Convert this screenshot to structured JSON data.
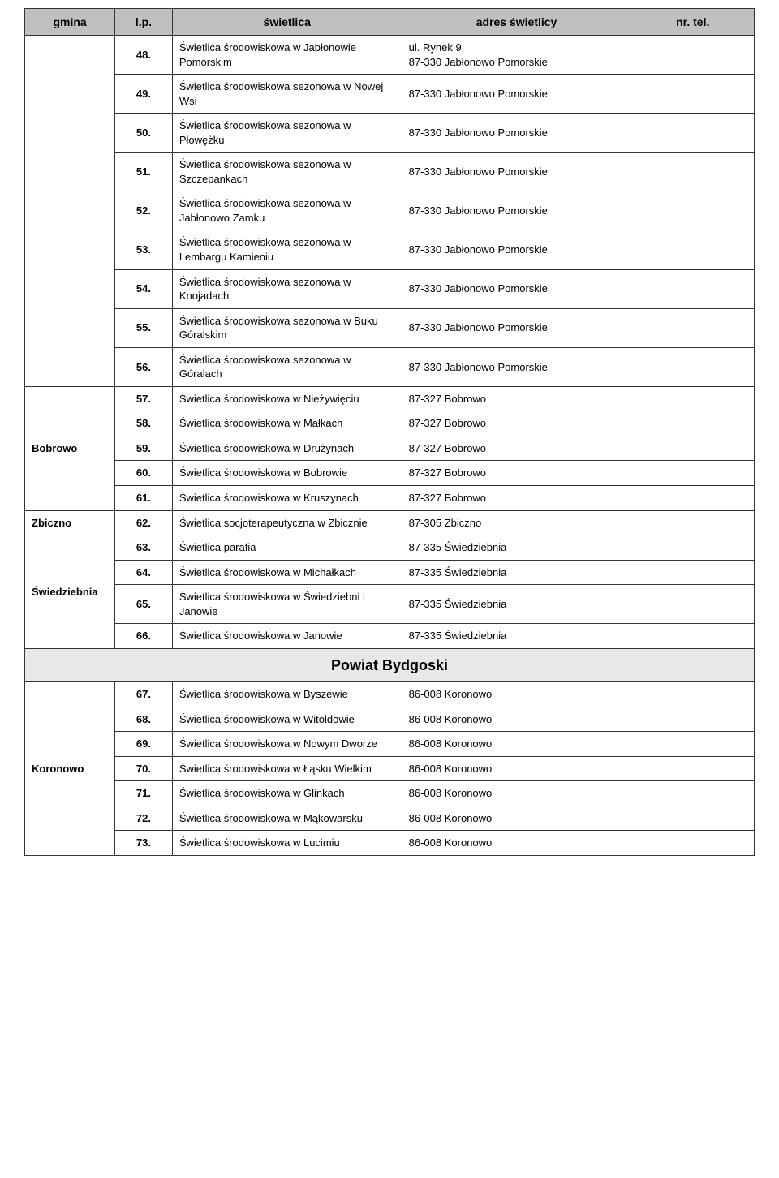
{
  "headers": {
    "gmina": "gmina",
    "lp": "l.p.",
    "swietlica": "świetlica",
    "adres": "adres świetlicy",
    "tel": "nr. tel."
  },
  "section_header": "Powiat Bydgoski",
  "groups": [
    {
      "gmina": "",
      "rows": [
        {
          "lp": "48.",
          "sw": "Świetlica środowiskowa w Jabłonowie Pomorskim",
          "adr": "ul. Rynek 9\n87-330 Jabłonowo Pomorskie",
          "tel": ""
        },
        {
          "lp": "49.",
          "sw": "Świetlica środowiskowa sezonowa w Nowej Wsi",
          "adr": "87-330 Jabłonowo Pomorskie",
          "tel": ""
        },
        {
          "lp": "50.",
          "sw": "Świetlica środowiskowa sezonowa w Płowężku",
          "adr": "87-330 Jabłonowo Pomorskie",
          "tel": ""
        },
        {
          "lp": "51.",
          "sw": "Świetlica środowiskowa sezonowa w Szczepankach",
          "adr": "87-330 Jabłonowo Pomorskie",
          "tel": ""
        },
        {
          "lp": "52.",
          "sw": "Świetlica środowiskowa sezonowa w Jabłonowo Zamku",
          "adr": "87-330 Jabłonowo Pomorskie",
          "tel": ""
        },
        {
          "lp": "53.",
          "sw": "Świetlica środowiskowa sezonowa w Lembargu Kamieniu",
          "adr": "87-330 Jabłonowo Pomorskie",
          "tel": ""
        },
        {
          "lp": "54.",
          "sw": "Świetlica środowiskowa sezonowa w Knojadach",
          "adr": "87-330 Jabłonowo Pomorskie",
          "tel": ""
        },
        {
          "lp": "55.",
          "sw": "Świetlica środowiskowa sezonowa w Buku Góralskim",
          "adr": "87-330 Jabłonowo Pomorskie",
          "tel": ""
        },
        {
          "lp": "56.",
          "sw": "Świetlica środowiskowa sezonowa w Góralach",
          "adr": "87-330 Jabłonowo Pomorskie",
          "tel": ""
        }
      ]
    },
    {
      "gmina": "Bobrowo",
      "rows": [
        {
          "lp": "57.",
          "sw": "Świetlica środowiskowa w Nieżywięciu",
          "adr": "87-327 Bobrowo",
          "tel": ""
        },
        {
          "lp": "58.",
          "sw": "Świetlica środowiskowa w Małkach",
          "adr": "87-327 Bobrowo",
          "tel": ""
        },
        {
          "lp": "59.",
          "sw": "Świetlica środowiskowa w Drużynach",
          "adr": "87-327 Bobrowo",
          "tel": ""
        },
        {
          "lp": "60.",
          "sw": "Świetlica środowiskowa w Bobrowie",
          "adr": "87-327 Bobrowo",
          "tel": ""
        },
        {
          "lp": "61.",
          "sw": "Świetlica środowiskowa w Kruszynach",
          "adr": "87-327 Bobrowo",
          "tel": ""
        }
      ]
    },
    {
      "gmina": "Zbiczno",
      "rows": [
        {
          "lp": "62.",
          "sw": "Świetlica socjoterapeutyczna w Zbicznie",
          "adr": "87-305 Zbiczno",
          "tel": ""
        }
      ]
    },
    {
      "gmina": "Świedziebnia",
      "rows": [
        {
          "lp": "63.",
          "sw": "Świetlica parafia",
          "adr": "87-335 Świedziebnia",
          "tel": ""
        },
        {
          "lp": "64.",
          "sw": "Świetlica środowiskowa w Michałkach",
          "adr": "87-335 Świedziebnia",
          "tel": ""
        },
        {
          "lp": "65.",
          "sw": "Świetlica środowiskowa w Świedziebni i Janowie",
          "adr": "87-335 Świedziebnia",
          "tel": ""
        },
        {
          "lp": "66.",
          "sw": "Świetlica środowiskowa w Janowie",
          "adr": "87-335 Świedziebnia",
          "tel": ""
        }
      ]
    }
  ],
  "groups_after": [
    {
      "gmina": "Koronowo",
      "rows": [
        {
          "lp": "67.",
          "sw": "Świetlica środowiskowa w Byszewie",
          "adr": "86-008 Koronowo",
          "tel": ""
        },
        {
          "lp": "68.",
          "sw": "Świetlica środowiskowa w Witoldowie",
          "adr": "86-008 Koronowo",
          "tel": ""
        },
        {
          "lp": "69.",
          "sw": "Świetlica środowiskowa w Nowym Dworze",
          "adr": "86-008 Koronowo",
          "tel": ""
        },
        {
          "lp": "70.",
          "sw": "Świetlica środowiskowa w Łąsku Wielkim",
          "adr": "86-008 Koronowo",
          "tel": ""
        },
        {
          "lp": "71.",
          "sw": "Świetlica środowiskowa w Glinkach",
          "adr": "86-008 Koronowo",
          "tel": ""
        },
        {
          "lp": "72.",
          "sw": "Świetlica środowiskowa w Mąkowarsku",
          "adr": "86-008 Koronowo",
          "tel": ""
        },
        {
          "lp": "73.",
          "sw": "Świetlica środowiskowa w Lucimiu",
          "adr": "86-008 Koronowo",
          "tel": ""
        }
      ]
    }
  ]
}
